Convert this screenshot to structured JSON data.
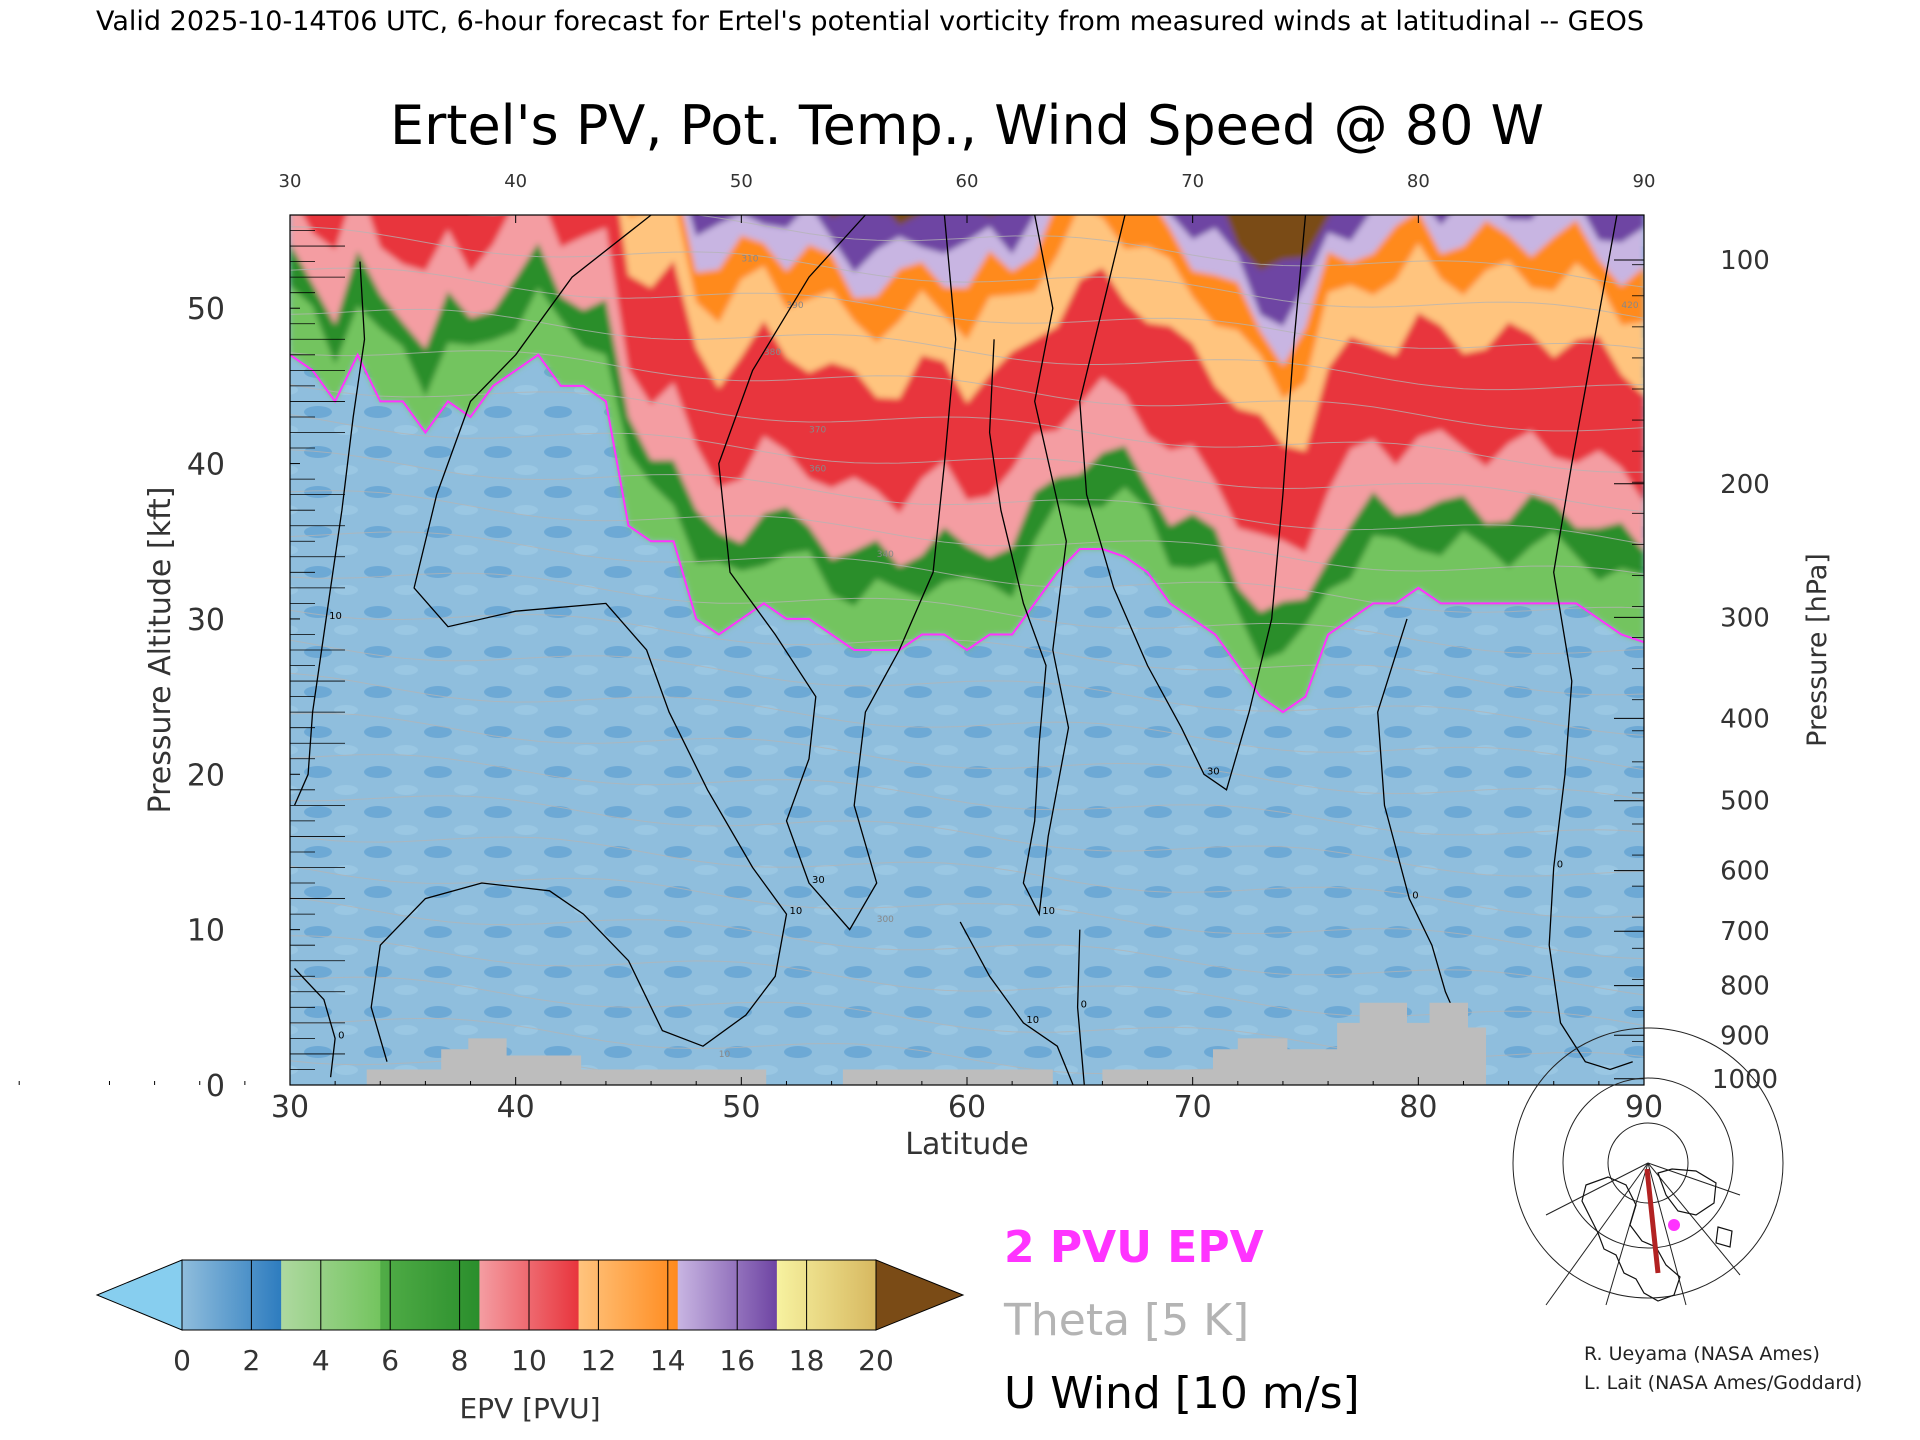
{
  "header": {
    "valid_line": "Valid 2025-10-14T06 UTC, 6-hour forecast for Ertel's potential vorticity from measured winds at latitudinal -- GEOS"
  },
  "chart_data": {
    "type": "heatmap",
    "title": "Ertel's PV, Pot. Temp., Wind Speed @ 80 W",
    "xlabel": "Latitude",
    "ylabel": "Pressure Altitude [kft]",
    "y2label": "Pressure [hPa]",
    "xlim": [
      30,
      90
    ],
    "ylim": [
      0,
      56
    ],
    "x_ticks": [
      "30",
      "40",
      "50",
      "60",
      "70",
      "80",
      "90"
    ],
    "y_ticks": [
      "0",
      "10",
      "20",
      "30",
      "40",
      "50"
    ],
    "pressure_ticks": [
      {
        "label": "100",
        "kft": 53.1
      },
      {
        "label": "200",
        "kft": 38.7
      },
      {
        "label": "300",
        "kft": 30.1
      },
      {
        "label": "400",
        "kft": 23.6
      },
      {
        "label": "500",
        "kft": 18.3
      },
      {
        "label": "600",
        "kft": 13.8
      },
      {
        "label": "700",
        "kft": 9.9
      },
      {
        "label": "800",
        "kft": 6.4
      },
      {
        "label": "900",
        "kft": 3.2
      },
      {
        "label": "1000",
        "kft": 0.4
      }
    ],
    "tropopause_2pvu_kft": [
      {
        "lat": 30,
        "alt": 47
      },
      {
        "lat": 31,
        "alt": 46
      },
      {
        "lat": 32,
        "alt": 44
      },
      {
        "lat": 33,
        "alt": 47
      },
      {
        "lat": 34,
        "alt": 44
      },
      {
        "lat": 35,
        "alt": 44
      },
      {
        "lat": 36,
        "alt": 42
      },
      {
        "lat": 37,
        "alt": 44
      },
      {
        "lat": 38,
        "alt": 43
      },
      {
        "lat": 39,
        "alt": 45
      },
      {
        "lat": 40,
        "alt": 46
      },
      {
        "lat": 41,
        "alt": 47
      },
      {
        "lat": 42,
        "alt": 45
      },
      {
        "lat": 43,
        "alt": 45
      },
      {
        "lat": 44,
        "alt": 44
      },
      {
        "lat": 45,
        "alt": 36
      },
      {
        "lat": 46,
        "alt": 35
      },
      {
        "lat": 47,
        "alt": 35
      },
      {
        "lat": 48,
        "alt": 30
      },
      {
        "lat": 49,
        "alt": 29
      },
      {
        "lat": 50,
        "alt": 30
      },
      {
        "lat": 51,
        "alt": 31
      },
      {
        "lat": 52,
        "alt": 30
      },
      {
        "lat": 53,
        "alt": 30
      },
      {
        "lat": 54,
        "alt": 29
      },
      {
        "lat": 55,
        "alt": 28
      },
      {
        "lat": 56,
        "alt": 28
      },
      {
        "lat": 57,
        "alt": 28
      },
      {
        "lat": 58,
        "alt": 29
      },
      {
        "lat": 59,
        "alt": 29
      },
      {
        "lat": 60,
        "alt": 28
      },
      {
        "lat": 61,
        "alt": 29
      },
      {
        "lat": 62,
        "alt": 29
      },
      {
        "lat": 63,
        "alt": 31
      },
      {
        "lat": 64,
        "alt": 33
      },
      {
        "lat": 65,
        "alt": 34.5
      },
      {
        "lat": 66,
        "alt": 34.5
      },
      {
        "lat": 67,
        "alt": 34
      },
      {
        "lat": 68,
        "alt": 33
      },
      {
        "lat": 69,
        "alt": 31
      },
      {
        "lat": 70,
        "alt": 30
      },
      {
        "lat": 71,
        "alt": 29
      },
      {
        "lat": 72,
        "alt": 27
      },
      {
        "lat": 73,
        "alt": 25
      },
      {
        "lat": 74,
        "alt": 24
      },
      {
        "lat": 75,
        "alt": 25
      },
      {
        "lat": 76,
        "alt": 29
      },
      {
        "lat": 77,
        "alt": 30
      },
      {
        "lat": 78,
        "alt": 31
      },
      {
        "lat": 79,
        "alt": 31
      },
      {
        "lat": 80,
        "alt": 32
      },
      {
        "lat": 81,
        "alt": 31
      },
      {
        "lat": 82,
        "alt": 31
      },
      {
        "lat": 83,
        "alt": 31
      },
      {
        "lat": 84,
        "alt": 31
      },
      {
        "lat": 85,
        "alt": 31
      },
      {
        "lat": 86,
        "alt": 31
      },
      {
        "lat": 87,
        "alt": 31
      },
      {
        "lat": 88,
        "alt": 30
      },
      {
        "lat": 89,
        "alt": 29
      },
      {
        "lat": 90,
        "alt": 28.5
      }
    ],
    "pv_band_offsets_kft": [
      {
        "pvu": 4,
        "offset": 3.5
      },
      {
        "pvu": 6,
        "offset": 6
      },
      {
        "pvu": 8,
        "offset": 10
      },
      {
        "pvu": 12,
        "offset": 17
      },
      {
        "pvu": 14,
        "offset": 21
      },
      {
        "pvu": 16,
        "offset": 23.5
      },
      {
        "pvu": 18,
        "offset": 25.5
      }
    ],
    "terrain_kft": [
      {
        "lat": 30,
        "alt": 0
      },
      {
        "lat": 33.4,
        "alt": 0
      },
      {
        "lat": 33.4,
        "alt": 1
      },
      {
        "lat": 36.7,
        "alt": 1
      },
      {
        "lat": 36.7,
        "alt": 2.3
      },
      {
        "lat": 37.9,
        "alt": 2.3
      },
      {
        "lat": 37.9,
        "alt": 3
      },
      {
        "lat": 39.6,
        "alt": 3
      },
      {
        "lat": 39.6,
        "alt": 1.9
      },
      {
        "lat": 42.9,
        "alt": 1.9
      },
      {
        "lat": 42.9,
        "alt": 1
      },
      {
        "lat": 51.1,
        "alt": 1
      },
      {
        "lat": 51.1,
        "alt": 0
      },
      {
        "lat": 54.5,
        "alt": 0
      },
      {
        "lat": 54.5,
        "alt": 1
      },
      {
        "lat": 63.8,
        "alt": 1
      },
      {
        "lat": 63.8,
        "alt": 0
      },
      {
        "lat": 66.0,
        "alt": 0
      },
      {
        "lat": 66.0,
        "alt": 1
      },
      {
        "lat": 70.9,
        "alt": 1
      },
      {
        "lat": 70.9,
        "alt": 2.3
      },
      {
        "lat": 72.0,
        "alt": 2.3
      },
      {
        "lat": 72.0,
        "alt": 3
      },
      {
        "lat": 74.2,
        "alt": 3
      },
      {
        "lat": 74.2,
        "alt": 2.3
      },
      {
        "lat": 76.4,
        "alt": 2.3
      },
      {
        "lat": 76.4,
        "alt": 4
      },
      {
        "lat": 77.4,
        "alt": 4
      },
      {
        "lat": 77.4,
        "alt": 5.3
      },
      {
        "lat": 79.5,
        "alt": 5.3
      },
      {
        "lat": 79.5,
        "alt": 4
      },
      {
        "lat": 80.5,
        "alt": 4
      },
      {
        "lat": 80.5,
        "alt": 5.3
      },
      {
        "lat": 82.2,
        "alt": 5.3
      },
      {
        "lat": 82.2,
        "alt": 3.7
      },
      {
        "lat": 83.0,
        "alt": 3.7
      },
      {
        "lat": 83.0,
        "alt": 0
      },
      {
        "lat": 90,
        "alt": 0
      }
    ],
    "u_wind_contours": [
      {
        "label": "30",
        "points": [
          [
            55.5,
            56
          ],
          [
            53,
            52
          ],
          [
            50.5,
            46
          ],
          [
            49,
            40
          ],
          [
            49.5,
            33
          ],
          [
            51.5,
            29
          ],
          [
            53.3,
            25
          ],
          [
            53,
            21
          ],
          [
            52,
            17
          ],
          [
            53,
            13
          ],
          [
            54.8,
            10
          ],
          [
            56,
            13
          ],
          [
            55,
            18
          ],
          [
            55.5,
            24
          ],
          [
            57,
            28
          ],
          [
            58.5,
            33
          ],
          [
            59,
            40
          ],
          [
            59.5,
            48
          ],
          [
            59,
            56
          ]
        ]
      },
      {
        "label": "10",
        "points": [
          [
            46,
            56
          ],
          [
            42.5,
            52
          ],
          [
            40,
            47
          ],
          [
            38,
            44
          ],
          [
            36.5,
            38
          ],
          [
            35.5,
            32
          ],
          [
            37,
            29.5
          ],
          [
            40,
            30.5
          ],
          [
            44,
            31
          ],
          [
            45.8,
            28
          ],
          [
            46.8,
            24
          ],
          [
            48.5,
            19
          ],
          [
            50.5,
            14
          ],
          [
            52,
            11
          ],
          [
            51.5,
            7
          ],
          [
            50.2,
            4.5
          ],
          [
            48.3,
            2.5
          ],
          [
            46.5,
            3.5
          ],
          [
            45,
            8
          ],
          [
            43,
            11
          ],
          [
            41.5,
            12.5
          ],
          [
            38.5,
            13
          ],
          [
            36,
            12
          ],
          [
            34,
            9
          ],
          [
            33.6,
            5
          ],
          [
            34.3,
            1.5
          ]
        ]
      },
      {
        "label": "10",
        "points": [
          [
            33.1,
            53
          ],
          [
            33.3,
            48
          ],
          [
            32.8,
            43
          ],
          [
            32.3,
            37
          ],
          [
            31.6,
            30
          ],
          [
            31,
            24
          ],
          [
            30.8,
            20
          ],
          [
            30.2,
            18
          ]
        ]
      },
      {
        "label": "0",
        "points": [
          [
            30.2,
            7.5
          ],
          [
            31.5,
            5.5
          ],
          [
            32,
            3
          ],
          [
            31.8,
            0.5
          ]
        ]
      },
      {
        "label": "10",
        "points": [
          [
            59.7,
            10.5
          ],
          [
            61,
            7
          ],
          [
            62.5,
            4
          ],
          [
            64,
            2.5
          ],
          [
            64.7,
            0
          ]
        ]
      },
      {
        "label": "10",
        "points": [
          [
            61.2,
            48
          ],
          [
            61,
            42
          ],
          [
            61.5,
            37
          ],
          [
            62.5,
            31
          ],
          [
            63.5,
            27
          ],
          [
            63.2,
            22
          ],
          [
            63,
            17
          ],
          [
            62.5,
            13
          ],
          [
            63.2,
            11
          ],
          [
            63.6,
            16
          ],
          [
            64.5,
            23
          ],
          [
            63.8,
            28
          ],
          [
            64.4,
            35
          ],
          [
            63,
            44
          ],
          [
            63.8,
            50
          ],
          [
            63,
            56
          ]
        ]
      },
      {
        "label": "30",
        "points": [
          [
            67,
            56
          ],
          [
            66,
            50
          ],
          [
            65,
            44
          ],
          [
            65.3,
            38
          ],
          [
            66.5,
            32
          ],
          [
            68,
            27
          ],
          [
            69.5,
            23
          ],
          [
            70.5,
            20
          ],
          [
            71.5,
            19
          ],
          [
            72.5,
            24
          ],
          [
            73.5,
            30
          ],
          [
            74,
            38
          ],
          [
            74.5,
            48
          ],
          [
            75,
            56
          ]
        ]
      },
      {
        "label": "0",
        "points": [
          [
            79.5,
            30
          ],
          [
            78.2,
            24
          ],
          [
            78.5,
            18
          ],
          [
            79.6,
            12
          ],
          [
            80.6,
            9
          ],
          [
            81.2,
            6
          ],
          [
            81.8,
            4
          ]
        ]
      },
      {
        "label": "0",
        "points": [
          [
            88.8,
            56
          ],
          [
            87.8,
            48
          ],
          [
            86.8,
            40
          ],
          [
            86,
            33
          ],
          [
            86.8,
            26
          ],
          [
            86.5,
            20
          ],
          [
            86,
            14
          ],
          [
            85.8,
            9
          ],
          [
            86.3,
            4
          ],
          [
            87.4,
            1.5
          ],
          [
            88.5,
            1
          ],
          [
            89.5,
            1.5
          ]
        ]
      },
      {
        "label": "0",
        "points": [
          [
            65.2,
            0
          ],
          [
            64.9,
            5
          ],
          [
            65,
            10
          ]
        ]
      }
    ],
    "theta_labels": [
      "310",
      "390",
      "380",
      "370",
      "360",
      "340",
      "300",
      "420",
      "10"
    ],
    "colorbar": {
      "label": "EPV [PVU]",
      "ticks": [
        "0",
        "2",
        "4",
        "6",
        "8",
        "10",
        "12",
        "14",
        "16",
        "18",
        "20"
      ],
      "under_color": "#87ceef",
      "over_color": "#7a4b16",
      "colors": [
        [
          "#8fbddc",
          "#2d7cbf"
        ],
        [
          "#aed9a0",
          "#73c45e"
        ],
        [
          "#51ad47",
          "#2a8e2c"
        ],
        [
          "#f49da2",
          "#e8343c"
        ],
        [
          "#ffc47e",
          "#ff8a1d"
        ],
        [
          "#c8b5e2",
          "#6e44a3"
        ],
        [
          "#f7f2a0",
          "#d7b860"
        ]
      ]
    },
    "legend": [
      {
        "label": "2 PVU EPV",
        "color": "#ff33ff"
      },
      {
        "label": "Theta [5 K]",
        "color": "#b4b4b4"
      },
      {
        "label": "U Wind [10 m/s]",
        "color": "#000000"
      }
    ]
  },
  "credits": [
    "R. Ueyama (NASA Ames)",
    "L. Lait (NASA Ames/Goddard)"
  ],
  "inset_map": {
    "track_color": "#b22222",
    "marker_color": "#ff33ff"
  }
}
